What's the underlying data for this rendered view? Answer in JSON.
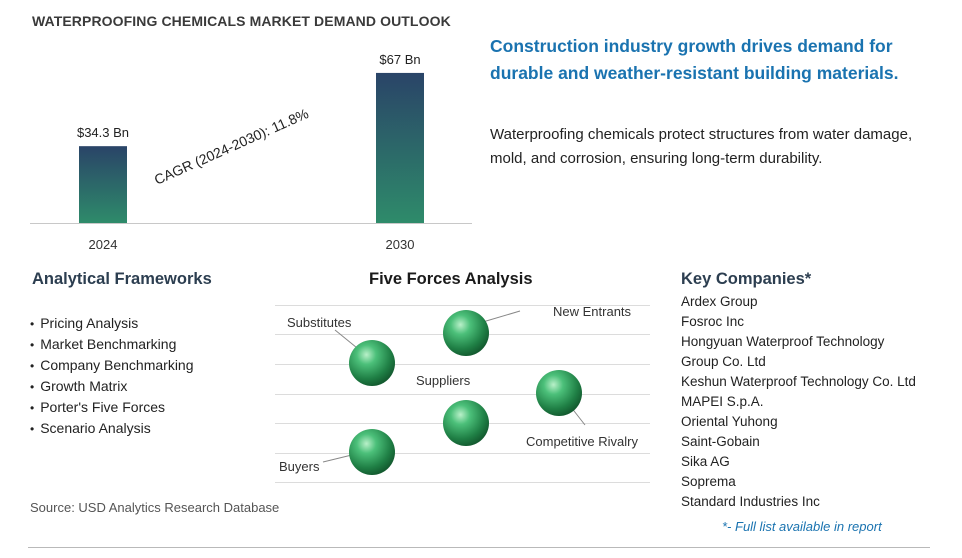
{
  "title": "WATERPROOFING CHEMICALS MARKET DEMAND OUTLOOK",
  "chart_data": {
    "type": "bar",
    "categories": [
      "2024",
      "2030"
    ],
    "values": [
      34.3,
      67
    ],
    "value_labels": [
      "$34.3 Bn",
      "$67 Bn"
    ],
    "annotation": "CAGR (2024-2030):  11.8%",
    "ylim": [
      0,
      75
    ],
    "grid": false,
    "bar_color_top": "#2a4468",
    "bar_color_bottom": "#2e8b6a"
  },
  "headline": "Construction industry growth drives demand for durable and weather-resistant building materials.",
  "description": "Waterproofing chemicals protect structures from water damage, mold, and corrosion, ensuring long-term durability.",
  "frameworks": {
    "title": "Analytical Frameworks",
    "items": [
      "Pricing Analysis",
      "Market Benchmarking",
      "Company Benchmarking",
      "Growth Matrix",
      "Porter's Five Forces",
      "Scenario Analysis"
    ]
  },
  "five_forces": {
    "title": "Five Forces Analysis",
    "labels": {
      "substitutes": "Substitutes",
      "new_entrants": "New Entrants",
      "suppliers": "Suppliers",
      "competitive_rivalry": "Competitive Rivalry",
      "buyers": "Buyers"
    },
    "sphere_icon": "green-sphere-icon"
  },
  "companies": {
    "title": "Key Companies*",
    "items": [
      "Ardex Group",
      "Fosroc Inc",
      "Hongyuan Waterproof Technology",
      "Group Co. Ltd",
      "Keshun Waterproof Technology Co. Ltd",
      "MAPEI S.p.A.",
      "Oriental Yuhong",
      "Saint-Gobain",
      "Sika AG",
      "Soprema",
      "Standard Industries Inc"
    ],
    "note": "*- Full list available in report"
  },
  "source": "Source: USD Analytics Research Database",
  "colors": {
    "accent_blue": "#1a73b0",
    "sphere_green": "#2e9c5a"
  }
}
